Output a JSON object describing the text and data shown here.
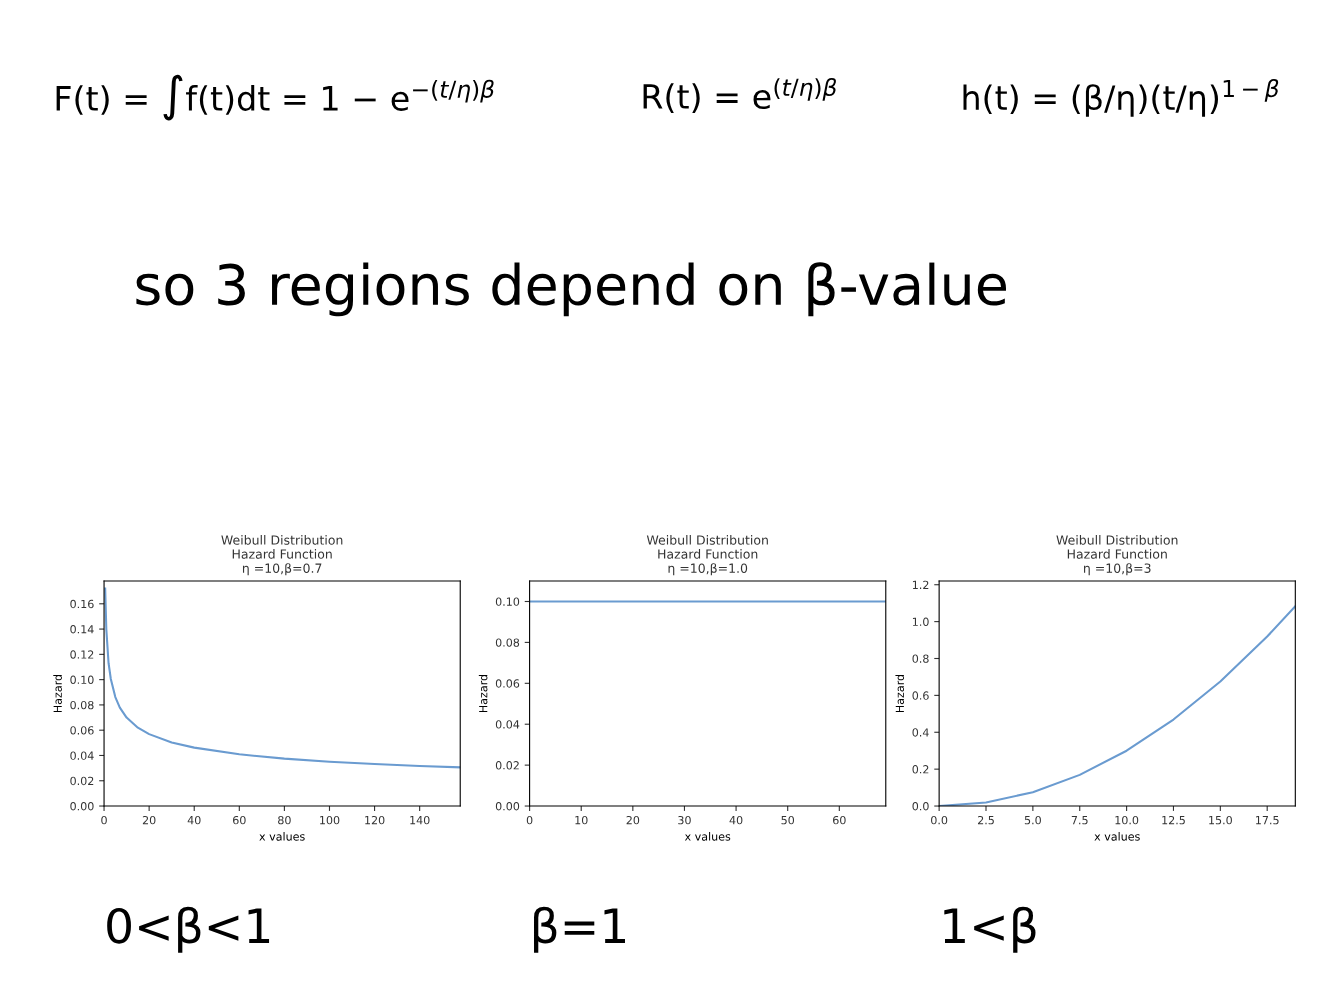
{
  "chart_data": [
    {
      "type": "other",
      "annotations": [
        "F(t) = ∫f(t)dt = 1 − e$^{−(t/η)β}$",
        "R(t) = e$^{(t/η)β}$",
        "h(t) = (β/η)(t/η)$^{1−β}$",
        "so 3 regions depend on β-value"
      ]
    },
    {
      "type": "line",
      "title": "Weibull Distribution\nHazard Function\nη =10,β=0.7",
      "xlabel": "x values",
      "ylabel": "Hazard",
      "series": [
        {
          "color": "#6a9bd0",
          "x": [
            0.5,
            1,
            2,
            3,
            5,
            7,
            10,
            15,
            20,
            30,
            40,
            60,
            80,
            100,
            120,
            140,
            158
          ],
          "values": [
            0.172,
            0.14,
            0.113,
            0.1005,
            0.0862,
            0.0779,
            0.07,
            0.062,
            0.0569,
            0.0503,
            0.0462,
            0.0409,
            0.0375,
            0.0351,
            0.0332,
            0.0317,
            0.0306
          ]
        }
      ],
      "xlim": [
        0,
        158
      ],
      "ylim": [
        0,
        0.178
      ],
      "xticks": [
        0,
        20,
        40,
        60,
        80,
        100,
        120,
        140
      ],
      "yticks": [
        {
          "value": 0,
          "label": "0.00"
        },
        0.02,
        0.04,
        0.06,
        0.08,
        {
          "value": 0.1,
          "label": "0.10"
        },
        0.12,
        0.14,
        0.16
      ],
      "annotations": [
        "0<β<1"
      ]
    },
    {
      "type": "line",
      "title": "Weibull Distribution\nHazard Function\nη =10,β=1.0",
      "xlabel": "x values",
      "ylabel": "Hazard",
      "series": [
        {
          "color": "#6a9bd0",
          "x": [
            0,
            69
          ],
          "values": [
            0.1,
            0.1
          ]
        }
      ],
      "xlim": [
        0,
        69
      ],
      "ylim": [
        0,
        0.11
      ],
      "xticks": [
        0,
        10,
        20,
        30,
        40,
        50,
        60
      ],
      "yticks": [
        {
          "value": 0,
          "label": "0.00"
        },
        0.02,
        0.04,
        0.06,
        0.08,
        {
          "value": 0.1,
          "label": "0.10"
        }
      ],
      "annotations": [
        "β=1"
      ]
    },
    {
      "type": "line",
      "title": "Weibull Distribution\nHazard Function\nη =10,β=3",
      "xlabel": "x values",
      "ylabel": "Hazard",
      "series": [
        {
          "color": "#6a9bd0",
          "x": [
            0,
            2.5,
            5,
            7.5,
            10,
            12.5,
            15,
            17.5,
            19
          ],
          "values": [
            0,
            0.019,
            0.075,
            0.169,
            0.3,
            0.469,
            0.675,
            0.919,
            1.083
          ]
        }
      ],
      "xlim": [
        0,
        19
      ],
      "ylim": [
        0,
        1.22
      ],
      "xticks": [
        {
          "value": 0,
          "label": "0.0"
        },
        2.5,
        {
          "value": 5,
          "label": "5.0"
        },
        7.5,
        {
          "value": 10,
          "label": "10.0"
        },
        12.5,
        {
          "value": 15,
          "label": "15.0"
        },
        17.5
      ],
      "yticks": [
        {
          "value": 0,
          "label": "0.0"
        },
        0.2,
        0.4,
        0.6,
        0.8,
        {
          "value": 1,
          "label": "1.0"
        },
        1.2
      ],
      "annotations": [
        "1<β"
      ]
    }
  ]
}
